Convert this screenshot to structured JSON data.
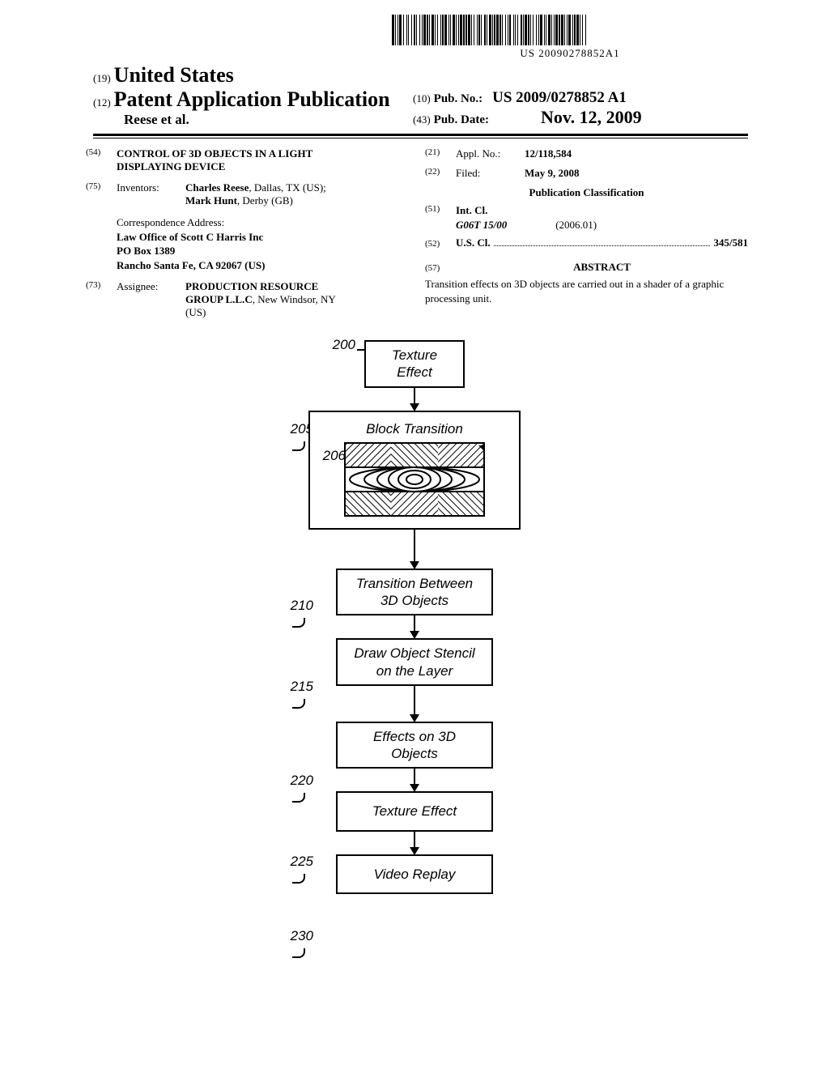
{
  "barcode_text": "US 20090278852A1",
  "header": {
    "code19": "(19)",
    "country": "United States",
    "code12": "(12)",
    "doc_type": "Patent Application Publication",
    "authors": "Reese et al.",
    "code10": "(10)",
    "pubno_label": "Pub. No.:",
    "pubno": "US 2009/0278852 A1",
    "code43": "(43)",
    "pubdate_label": "Pub. Date:",
    "pubdate": "Nov. 12, 2009"
  },
  "left": {
    "c54": "(54)",
    "title": "CONTROL OF 3D OBJECTS IN A LIGHT DISPLAYING DEVICE",
    "c75": "(75)",
    "inv_label": "Inventors:",
    "inv1_name": "Charles Reese",
    "inv1_loc": ", Dallas, TX (US);",
    "inv2_name": "Mark Hunt",
    "inv2_loc": ", Derby (GB)",
    "corr_label": "Correspondence Address:",
    "corr1": "Law Office of Scott C Harris Inc",
    "corr2": "PO Box 1389",
    "corr3": "Rancho Santa Fe, CA 92067 (US)",
    "c73": "(73)",
    "assg_label": "Assignee:",
    "assg_name": "PRODUCTION RESOURCE GROUP L.L.C",
    "assg_loc": ", New Windsor, NY (US)"
  },
  "right": {
    "c21": "(21)",
    "appl_label": "Appl. No.:",
    "appl_no": "12/118,584",
    "c22": "(22)",
    "filed_label": "Filed:",
    "filed": "May 9, 2008",
    "pubclass": "Publication Classification",
    "c51": "(51)",
    "intcl_label": "Int. Cl.",
    "intcl_code": "G06T 15/00",
    "intcl_date": "(2006.01)",
    "c52": "(52)",
    "uscl_label": "U.S. Cl.",
    "uscl_val": "345/581",
    "c57": "(57)",
    "abstract_title": "ABSTRACT",
    "abstract_text": "Transition effects on 3D objects are carried out in a shader of a graphic processing unit."
  },
  "flow": {
    "l200": "200",
    "b200": "Texture\nEffect",
    "l205": "205",
    "b205": "Block Transition",
    "l206": "206",
    "l210": "210",
    "b210": "Transition Between\n3D Objects",
    "l215": "215",
    "b215": "Draw Object Stencil\non the Layer",
    "l220": "220",
    "b220": "Effects on 3D\nObjects",
    "l225": "225",
    "b225": "Texture Effect",
    "l230": "230",
    "b230": "Video Replay"
  }
}
